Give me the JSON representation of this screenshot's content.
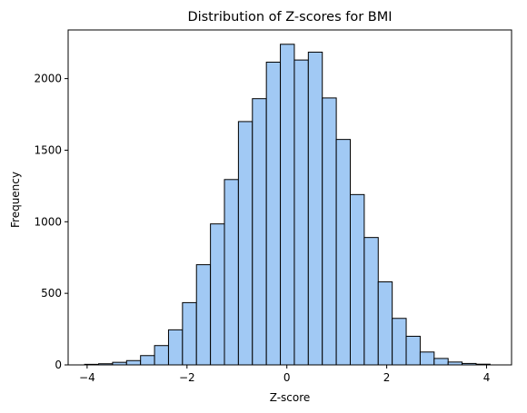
{
  "chart_data": {
    "type": "bar",
    "title": "Distribution of Z-scores for BMI",
    "xlabel": "Z-score",
    "ylabel": "Frequency",
    "xlim": [
      -4.38,
      4.5
    ],
    "ylim": [
      0,
      2340
    ],
    "grid": false,
    "bar_color": "#a1c9f4",
    "edge_color": "#000000",
    "bin_edges": [
      -4.05,
      -3.77,
      -3.49,
      -3.21,
      -2.93,
      -2.65,
      -2.37,
      -2.09,
      -1.81,
      -1.53,
      -1.25,
      -0.97,
      -0.69,
      -0.41,
      -0.13,
      0.15,
      0.43,
      0.71,
      0.99,
      1.27,
      1.55,
      1.83,
      2.11,
      2.39,
      2.67,
      2.95,
      3.23,
      3.51,
      3.79,
      4.07
    ],
    "values": [
      4,
      8,
      18,
      30,
      65,
      135,
      245,
      435,
      700,
      985,
      1295,
      1700,
      1860,
      2115,
      2240,
      2130,
      2185,
      1865,
      1575,
      1190,
      890,
      580,
      325,
      200,
      90,
      45,
      20,
      10,
      5
    ],
    "xticks": [
      {
        "value": -4,
        "label": "−4"
      },
      {
        "value": -2,
        "label": "−2"
      },
      {
        "value": 0,
        "label": "0"
      },
      {
        "value": 2,
        "label": "2"
      },
      {
        "value": 4,
        "label": "4"
      }
    ],
    "yticks": [
      {
        "value": 0,
        "label": "0"
      },
      {
        "value": 500,
        "label": "500"
      },
      {
        "value": 1000,
        "label": "1000"
      },
      {
        "value": 1500,
        "label": "1500"
      },
      {
        "value": 2000,
        "label": "2000"
      }
    ]
  }
}
